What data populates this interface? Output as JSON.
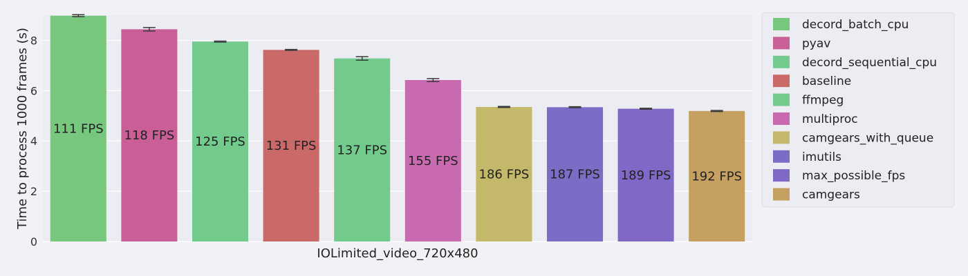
{
  "chart_data": {
    "type": "bar",
    "title": "",
    "xlabel": "IOLimited_video_720x480",
    "ylabel": "Time to process 1000 frames (s)",
    "ylim": [
      0,
      9.0
    ],
    "yticks": [
      0,
      2,
      4,
      6,
      8
    ],
    "grid": true,
    "legend_position": "right",
    "categories": [
      "decord_batch_cpu",
      "pyav",
      "decord_sequential_cpu",
      "baseline",
      "ffmpeg",
      "multiproc",
      "camgears_with_queue",
      "imutils",
      "max_possible_fps",
      "camgears"
    ],
    "values": [
      8.98,
      8.44,
      7.95,
      7.62,
      7.28,
      6.42,
      5.35,
      5.34,
      5.28,
      5.19
    ],
    "errors": [
      0.04,
      0.07,
      0.02,
      0.02,
      0.07,
      0.06,
      0.02,
      0.02,
      0.02,
      0.02
    ],
    "labels": [
      "111 FPS",
      "118 FPS",
      "125 FPS",
      "131 FPS",
      "137 FPS",
      "155 FPS",
      "186 FPS",
      "187 FPS",
      "189 FPS",
      "192 FPS"
    ],
    "colors": [
      "#77c77f",
      "#c95f96",
      "#72cb8c",
      "#c96968",
      "#72cb8c",
      "#c969b0",
      "#c4b86a",
      "#7b6cc6",
      "#8068c6",
      "#c6a060"
    ]
  }
}
